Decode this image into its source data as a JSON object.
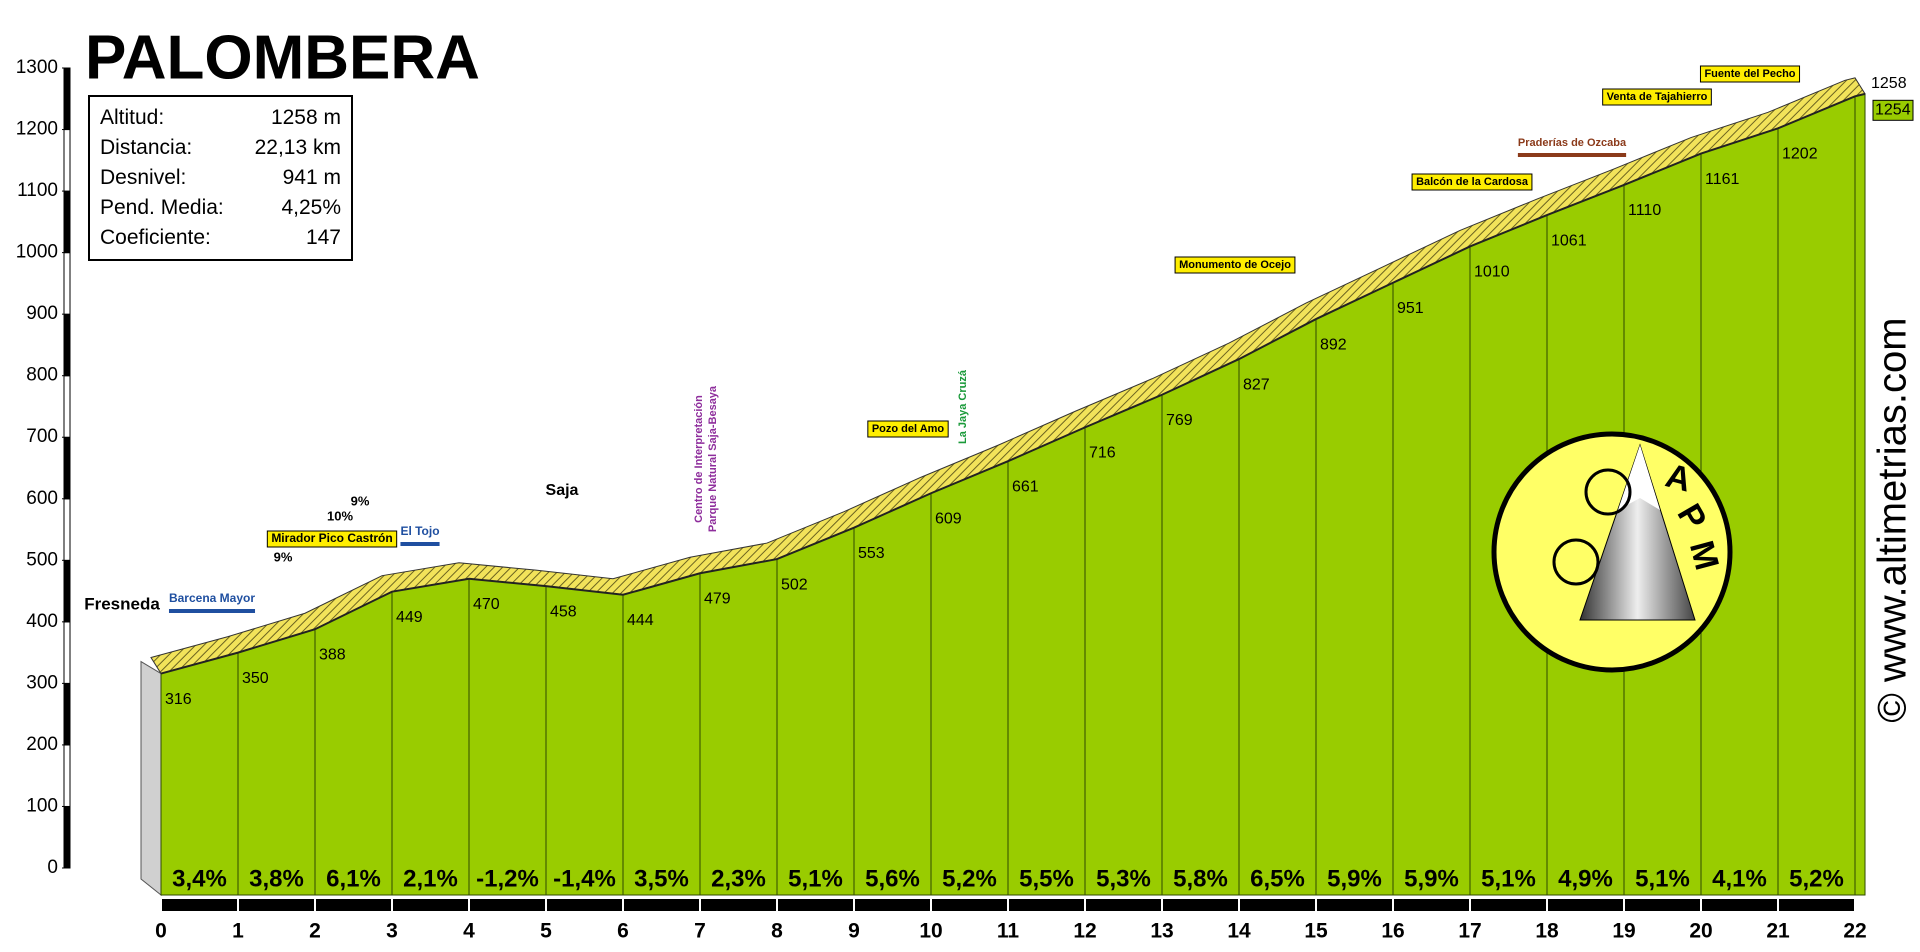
{
  "chart_data": {
    "type": "profile",
    "title": "PALOMBERA",
    "info": [
      [
        "Altitud:",
        "1258 m"
      ],
      [
        "Distancia:",
        "22,13 km"
      ],
      [
        "Desnivel:",
        "941 m"
      ],
      [
        "Pend. Media:",
        "4,25%"
      ],
      [
        "Coeficiente:",
        "147"
      ]
    ],
    "x": [
      0,
      1,
      2,
      3,
      4,
      5,
      6,
      7,
      8,
      9,
      10,
      11,
      12,
      13,
      14,
      15,
      16,
      17,
      18,
      19,
      20,
      21,
      22,
      22.13
    ],
    "values": [
      316,
      350,
      388,
      449,
      470,
      458,
      444,
      479,
      502,
      553,
      609,
      661,
      716,
      769,
      827,
      892,
      951,
      1010,
      1061,
      1110,
      1161,
      1202,
      1254,
      1258
    ],
    "gradients": {
      "values": [
        3.4,
        3.8,
        6.1,
        2.1,
        -1.2,
        -1.4,
        3.5,
        2.3,
        5.1,
        5.6,
        5.2,
        5.5,
        5.3,
        5.8,
        6.5,
        5.9,
        5.9,
        5.1,
        4.9,
        5.1,
        4.1,
        5.2
      ],
      "value_labels": [
        "3,4%",
        "3,8%",
        "6,1%",
        "2,1%",
        "-1,2%",
        "-1,4%",
        "3,5%",
        "2,3%",
        "5,1%",
        "5,6%",
        "5,2%",
        "5,5%",
        "5,3%",
        "5,8%",
        "6,5%",
        "5,9%",
        "5,9%",
        "5,1%",
        "4,9%",
        "5,1%",
        "4,1%",
        "5,2%"
      ]
    },
    "color": "#99cc00",
    "xlim": [
      0,
      22
    ],
    "xticks": [
      0,
      1,
      2,
      3,
      4,
      5,
      6,
      7,
      8,
      9,
      10,
      11,
      12,
      13,
      14,
      15,
      16,
      17,
      18,
      19,
      20,
      21,
      22
    ],
    "ylim": [
      0,
      1300
    ],
    "yticks": [
      0,
      100,
      200,
      300,
      400,
      500,
      600,
      700,
      800,
      900,
      1000,
      1100,
      1200,
      1300
    ],
    "annotations": [
      "Fresneda",
      "Barcena Mayor",
      "9%",
      "Mirador Pico Castrón",
      "10%",
      "9%",
      "El Tojo",
      "Saja",
      "Centro de Interpretación",
      "Parque Natural Saja-Besaya",
      "Pozo del Amo",
      "La Jaya Cruzá",
      "Monumento de Ocejo",
      "Balcón de la Cardosa",
      "Praderías de Ozcaba",
      "Venta de Tajahierro",
      "Fuente del Pecho"
    ],
    "logo": [
      "A",
      "P",
      "M"
    ],
    "watermark": "© www.altimetrias.com"
  }
}
